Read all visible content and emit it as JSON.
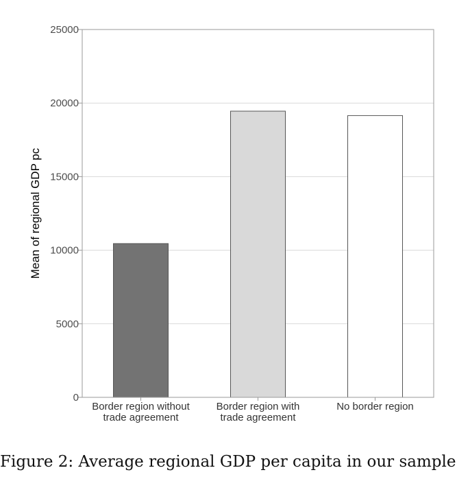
{
  "chart_data": {
    "type": "bar",
    "categories": [
      [
        "Border region without",
        "trade agreement"
      ],
      [
        "Border region with",
        "trade agreement"
      ],
      [
        "No border region"
      ]
    ],
    "values": [
      10450,
      19450,
      19150
    ],
    "bar_colors": [
      "#737373",
      "#d9d9d9",
      "#ffffff"
    ],
    "bar_stroke": "#555555",
    "ylabel": "Mean of regional GDP pc",
    "ylim": [
      0,
      25000
    ],
    "yticks": [
      0,
      5000,
      10000,
      15000,
      20000,
      25000
    ],
    "grid": true,
    "gridline_color": "#d9d9d9",
    "axis_color": "#9a9a9a"
  },
  "caption": "Figure 2: Average regional GDP per capita in our sample."
}
